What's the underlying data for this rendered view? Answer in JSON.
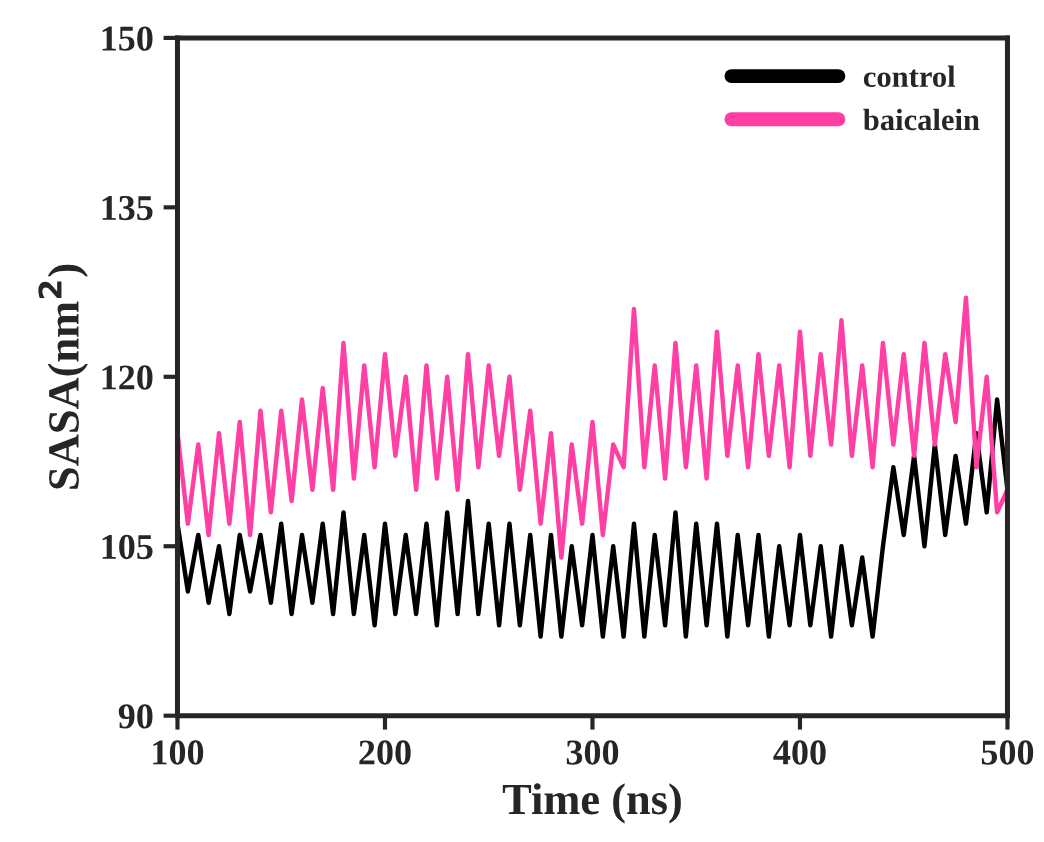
{
  "chart_data": {
    "type": "line",
    "xlabel": "Time (ns)",
    "ylabel": "SASA(nm$^{2}$)",
    "xlim": [
      100,
      500
    ],
    "xticks": [
      100,
      200,
      300,
      400,
      500
    ],
    "ylim": [
      90,
      150
    ],
    "yticks": [
      90,
      105,
      120,
      135,
      150
    ],
    "grid": false,
    "legend": "top right",
    "line_style": "solid",
    "marker": "none",
    "x": [
      100,
      105,
      110,
      115,
      120,
      125,
      130,
      135,
      140,
      145,
      150,
      155,
      160,
      165,
      170,
      175,
      180,
      185,
      190,
      195,
      200,
      205,
      210,
      215,
      220,
      225,
      230,
      235,
      240,
      245,
      250,
      255,
      260,
      265,
      270,
      275,
      280,
      285,
      290,
      295,
      300,
      305,
      310,
      315,
      320,
      325,
      330,
      335,
      340,
      345,
      350,
      355,
      360,
      365,
      370,
      375,
      380,
      385,
      390,
      395,
      400,
      405,
      410,
      415,
      420,
      425,
      430,
      435,
      440,
      445,
      450,
      455,
      460,
      465,
      470,
      475,
      480,
      485,
      490,
      495,
      500
    ],
    "series": [
      {
        "name": "control",
        "color": "#000000",
        "values": [
          107,
          101,
          106,
          100,
          105,
          99,
          106,
          101,
          106,
          100,
          107,
          99,
          106,
          100,
          107,
          99,
          108,
          99,
          106,
          98,
          107,
          99,
          106,
          99,
          107,
          98,
          108,
          99,
          109,
          99,
          107,
          98,
          107,
          98,
          106,
          97,
          106,
          97,
          105,
          98,
          106,
          97,
          105,
          97,
          107,
          97,
          106,
          98,
          108,
          97,
          107,
          98,
          107,
          97,
          106,
          98,
          106,
          97,
          105,
          98,
          106,
          98,
          105,
          97,
          105,
          98,
          104,
          97,
          105,
          112,
          106,
          113,
          105,
          114,
          106,
          113,
          107,
          115,
          108,
          118,
          110
        ]
      },
      {
        "name": "baicalein",
        "color": "#ff3fa4",
        "values": [
          115,
          107,
          114,
          106,
          115,
          107,
          116,
          106,
          117,
          108,
          117,
          109,
          118,
          110,
          119,
          110,
          123,
          111,
          121,
          112,
          122,
          113,
          120,
          110,
          121,
          111,
          120,
          110,
          122,
          112,
          121,
          113,
          120,
          110,
          117,
          107,
          115,
          104,
          114,
          107,
          116,
          106,
          114,
          112,
          126,
          112,
          121,
          111,
          123,
          112,
          121,
          111,
          124,
          113,
          121,
          112,
          122,
          113,
          121,
          112,
          124,
          113,
          122,
          114,
          125,
          113,
          121,
          112,
          123,
          114,
          122,
          113,
          123,
          114,
          122,
          116,
          127,
          112,
          120,
          108,
          110
        ]
      }
    ]
  }
}
